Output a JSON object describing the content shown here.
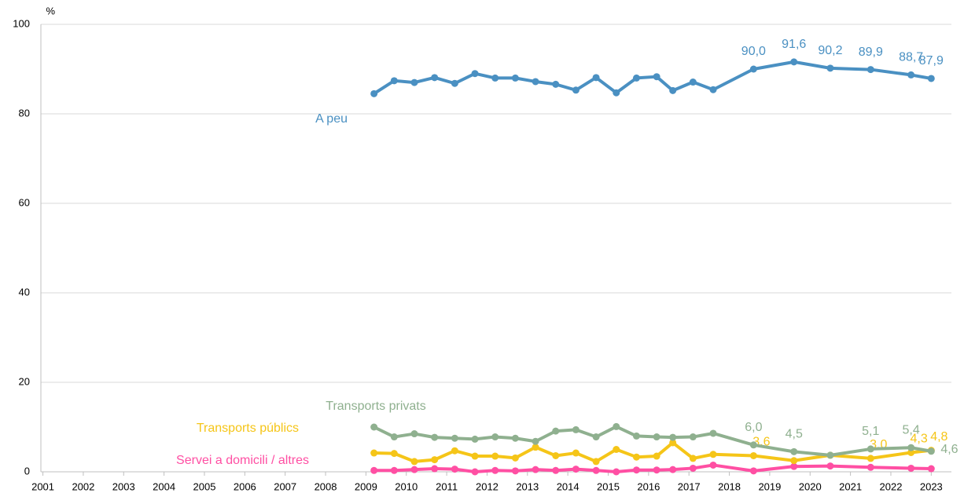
{
  "chart_data": {
    "type": "line",
    "y_unit": "%",
    "x": [
      2009.2,
      2009.7,
      2010.2,
      2010.7,
      2011.2,
      2011.7,
      2012.2,
      2012.7,
      2013.2,
      2013.7,
      2014.2,
      2014.7,
      2015.2,
      2015.7,
      2016.2,
      2016.6,
      2017.1,
      2017.6,
      2018.6,
      2019.6,
      2020.5,
      2021.5,
      2022.5,
      2023.0
    ],
    "series": [
      {
        "name": "A peu",
        "color": "#4a90c2",
        "values": [
          84.5,
          87.4,
          87.0,
          88.1,
          86.8,
          89.0,
          88.0,
          88.0,
          87.2,
          86.6,
          85.3,
          88.1,
          84.7,
          88.0,
          88.3,
          85.2,
          87.1,
          85.4,
          90.0,
          91.6,
          90.2,
          89.9,
          88.7,
          87.9
        ],
        "value_labels": [
          null,
          null,
          null,
          null,
          null,
          null,
          null,
          null,
          null,
          null,
          null,
          null,
          null,
          null,
          null,
          null,
          null,
          null,
          "90,0",
          "91,6",
          "90,2",
          "89,9",
          "88,7",
          "87,9"
        ]
      },
      {
        "name": "Transports privats",
        "color": "#8fb08f",
        "values": [
          10.0,
          7.8,
          8.5,
          7.7,
          7.5,
          7.3,
          7.8,
          7.5,
          6.8,
          9.1,
          9.4,
          7.8,
          10.1,
          8.0,
          7.8,
          7.7,
          7.8,
          8.6,
          6.0,
          4.5,
          3.7,
          5.1,
          5.4,
          4.6
        ],
        "value_labels": [
          null,
          null,
          null,
          null,
          null,
          null,
          null,
          null,
          null,
          null,
          null,
          null,
          null,
          null,
          null,
          null,
          null,
          null,
          "6,0",
          "4,5",
          null,
          "5,1",
          "5,4",
          "4,6"
        ]
      },
      {
        "name": "Transports públics",
        "color": "#f5c518",
        "values": [
          4.2,
          4.1,
          2.3,
          2.7,
          4.7,
          3.5,
          3.5,
          3.1,
          5.5,
          3.6,
          4.2,
          2.3,
          5.0,
          3.3,
          3.5,
          6.5,
          3.0,
          3.9,
          3.6,
          2.5,
          3.7,
          3.0,
          4.3,
          4.8
        ],
        "value_labels": [
          null,
          null,
          null,
          null,
          null,
          null,
          null,
          null,
          null,
          null,
          null,
          null,
          null,
          null,
          null,
          null,
          null,
          null,
          "3,6",
          null,
          null,
          "3,0",
          "4,3",
          "4,8"
        ]
      },
      {
        "name": "Servei a domicili / altres",
        "color": "#ff4fa3",
        "values": [
          0.3,
          0.3,
          0.5,
          0.7,
          0.6,
          0.0,
          0.3,
          0.2,
          0.5,
          0.3,
          0.6,
          0.3,
          0.0,
          0.4,
          0.4,
          0.5,
          0.8,
          1.5,
          0.2,
          1.2,
          1.3,
          1.0,
          0.8,
          0.7
        ]
      }
    ],
    "xlim": [
      2000.95,
      2023.5
    ],
    "xticks": [
      2001,
      2002,
      2003,
      2004,
      2005,
      2006,
      2007,
      2008,
      2009,
      2010,
      2011,
      2012,
      2013,
      2014,
      2015,
      2016,
      2017,
      2018,
      2019,
      2020,
      2021,
      2022,
      2023
    ],
    "ylim": [
      0,
      100
    ],
    "yticks": [
      0,
      20,
      40,
      60,
      80,
      100
    ],
    "grid": true
  }
}
